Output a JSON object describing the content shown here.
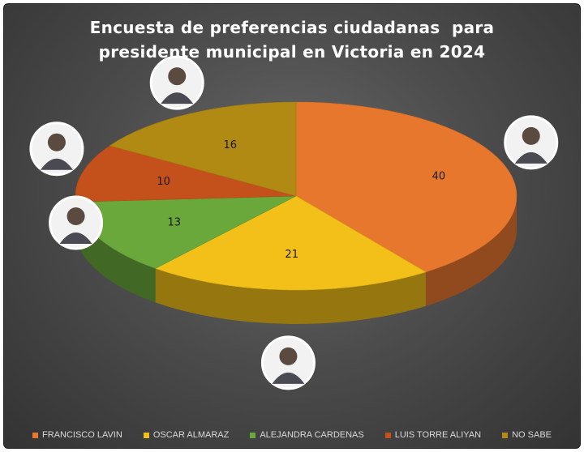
{
  "title_lines": [
    "Encuesta de preferencias ciudadanas  para",
    "presidente municipal en Victoria en 2024"
  ],
  "chart_data": {
    "type": "pie",
    "title": "Encuesta de preferencias ciudadanas  para presidente municipal en Victoria en 2024",
    "categories": [
      "FRANCISCO LAVIN",
      "OSCAR ALMARAZ",
      "ALEJANDRA CARDENAS",
      "LUIS TORRE ALIYAN",
      "NO SABE"
    ],
    "values": [
      40,
      21,
      13,
      10,
      16
    ],
    "colors": [
      "#e8772e",
      "#f2c018",
      "#6aa83c",
      "#c4501c",
      "#b08a12"
    ],
    "legend_position": "bottom",
    "style": "3d"
  }
}
